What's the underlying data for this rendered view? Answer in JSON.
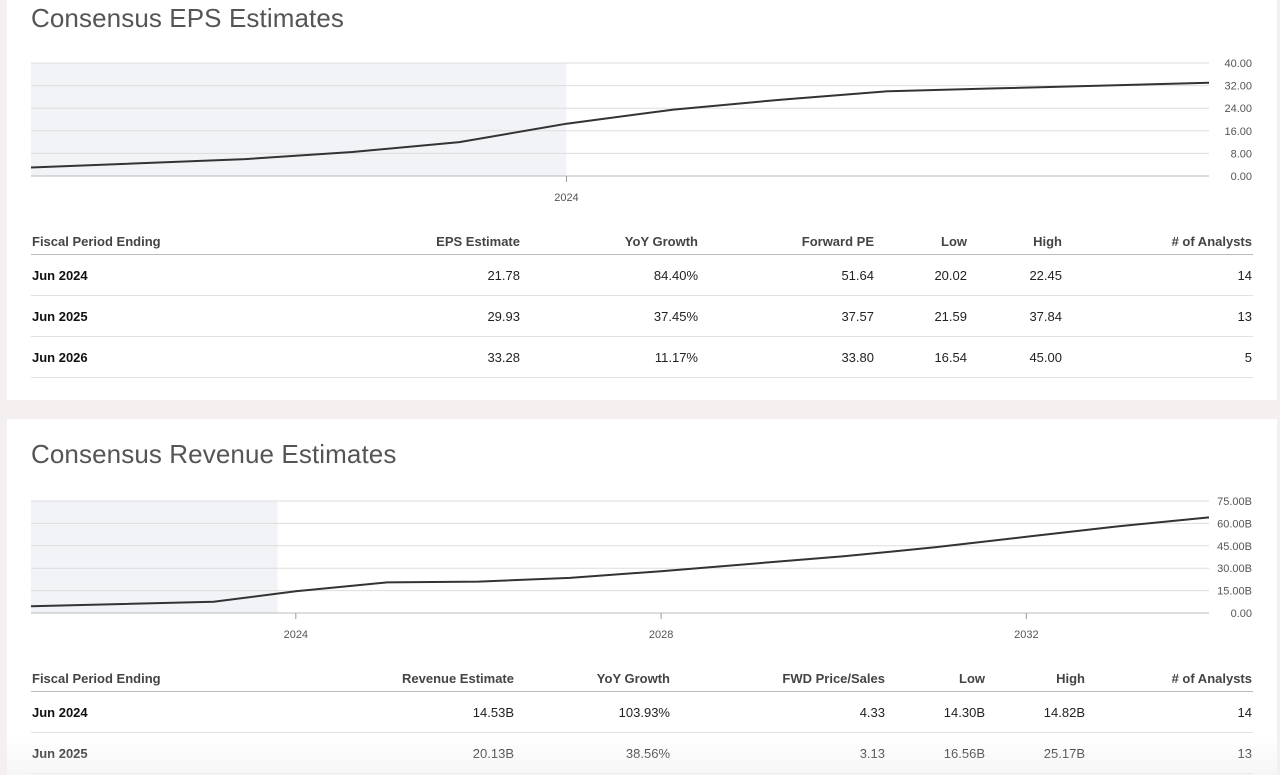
{
  "eps": {
    "title": "Consensus EPS Estimates",
    "table": {
      "headers": [
        "Fiscal Period Ending",
        "EPS Estimate",
        "YoY Growth",
        "Forward PE",
        "Low",
        "High",
        "# of Analysts"
      ],
      "rows": [
        [
          "Jun 2024",
          "21.78",
          "84.40%",
          "51.64",
          "20.02",
          "22.45",
          "14"
        ],
        [
          "Jun 2025",
          "29.93",
          "37.45%",
          "37.57",
          "21.59",
          "37.84",
          "13"
        ],
        [
          "Jun 2026",
          "33.28",
          "11.17%",
          "33.80",
          "16.54",
          "45.00",
          "5"
        ]
      ]
    }
  },
  "revenue": {
    "title": "Consensus Revenue Estimates",
    "table": {
      "headers": [
        "Fiscal Period Ending",
        "Revenue Estimate",
        "YoY Growth",
        "FWD Price/Sales",
        "Low",
        "High",
        "# of Analysts"
      ],
      "rows": [
        [
          "Jun 2024",
          "14.53B",
          "103.93%",
          "4.33",
          "14.30B",
          "14.82B",
          "14"
        ],
        [
          "Jun 2025",
          "20.13B",
          "38.56%",
          "3.13",
          "16.56B",
          "25.17B",
          "13"
        ]
      ]
    }
  },
  "colors": {
    "line": "#333333",
    "shade": "#f2f3f7",
    "grid": "#dddddd"
  },
  "chart_data": [
    {
      "type": "line",
      "title": "",
      "xlabel": "",
      "ylabel": "",
      "x_ticks": [
        "2024"
      ],
      "y_ticks": [
        "40.00",
        "32.00",
        "24.00",
        "16.00",
        "8.00",
        "0.00"
      ],
      "ylim": [
        0,
        40
      ],
      "xlim": [
        2021.5,
        2027
      ],
      "grid": true,
      "historical_shaded_until": 2024.0,
      "series": [
        {
          "x": [
            2021.5,
            2022.5,
            2023.0,
            2023.5,
            2024.0,
            2024.5,
            2025.0,
            2025.5,
            2026.0,
            2026.5,
            2027.0
          ],
          "values": [
            3.0,
            6.0,
            8.5,
            12.0,
            18.5,
            23.5,
            27.0,
            30.0,
            31.0,
            32.0,
            33.0
          ]
        }
      ]
    },
    {
      "type": "line",
      "title": "",
      "xlabel": "",
      "ylabel": "",
      "x_ticks": [
        "2024",
        "2028",
        "2032"
      ],
      "y_ticks": [
        "75.00B",
        "60.00B",
        "45.00B",
        "30.00B",
        "15.00B",
        "0.00"
      ],
      "ylim": [
        0,
        75
      ],
      "xlim": [
        2021.1,
        2034.0
      ],
      "grid": true,
      "historical_shaded_until": 2023.8,
      "series": [
        {
          "x": [
            2021.1,
            2023.1,
            2024.0,
            2025.0,
            2026.0,
            2027.0,
            2028.0,
            2029.0,
            2030.0,
            2031.0,
            2032.0,
            2033.0,
            2034.0
          ],
          "values": [
            4.5,
            7.5,
            14.5,
            20.5,
            21.0,
            23.5,
            28.0,
            33.0,
            38.0,
            44.0,
            51.0,
            58.0,
            64.0
          ]
        }
      ]
    }
  ]
}
